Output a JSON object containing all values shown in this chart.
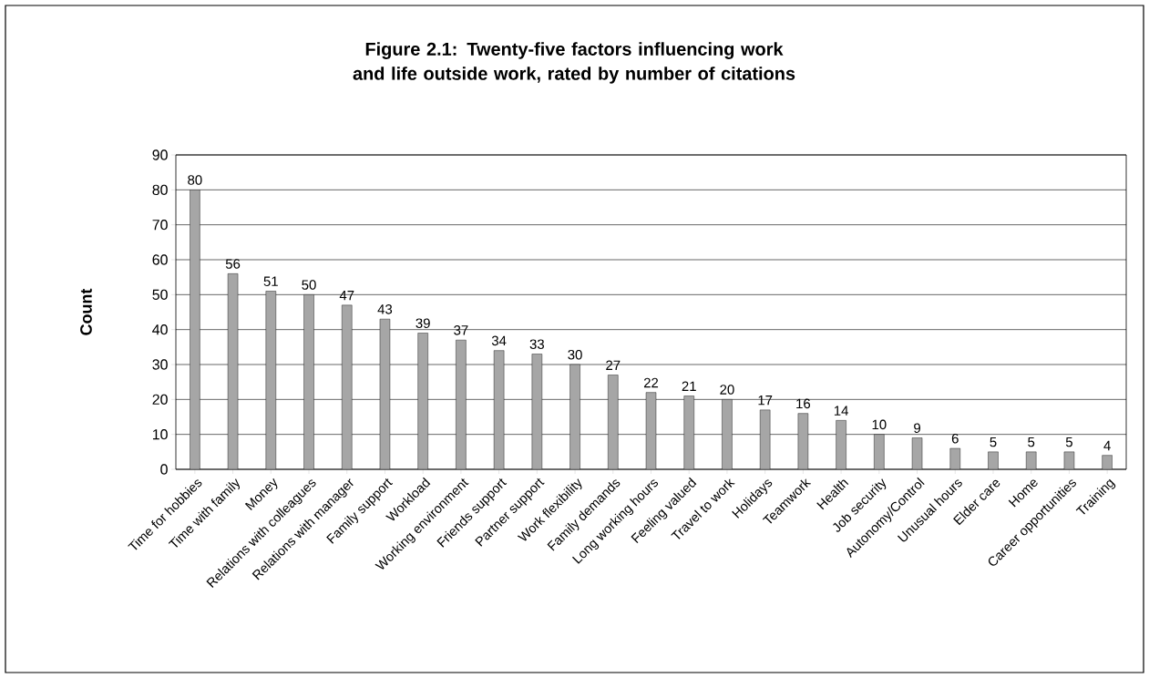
{
  "chart_data": {
    "type": "bar",
    "title": "Figure 2.1: Twenty-five factors influencing work and life outside work, rated by number of citations",
    "ylabel": "Count",
    "categories": [
      "Time for hobbies",
      "Time with family",
      "Money",
      "Relations with colleagues",
      "Relations with manager",
      "Family support",
      "Workload",
      "Working environment",
      "Friends support",
      "Partner support",
      "Work flexibility",
      "Family demands",
      "Long working hours",
      "Feeling valued",
      "Travel to work",
      "Holidays",
      "Teamwork",
      "Health",
      "Job security",
      "Autonomy/Control",
      "Unusual hours",
      "Elder care",
      "Home",
      "Career opportunities",
      "Training"
    ],
    "values": [
      80,
      56,
      51,
      50,
      47,
      43,
      39,
      37,
      34,
      33,
      30,
      27,
      22,
      21,
      20,
      17,
      16,
      14,
      10,
      9,
      6,
      5,
      5,
      5,
      4
    ],
    "color": "#a6a6a6",
    "ylim": [
      0,
      90
    ],
    "yticks": [
      0,
      10,
      20,
      30,
      40,
      50,
      60,
      70,
      80,
      90
    ],
    "grid": "y",
    "data_labels": true
  }
}
